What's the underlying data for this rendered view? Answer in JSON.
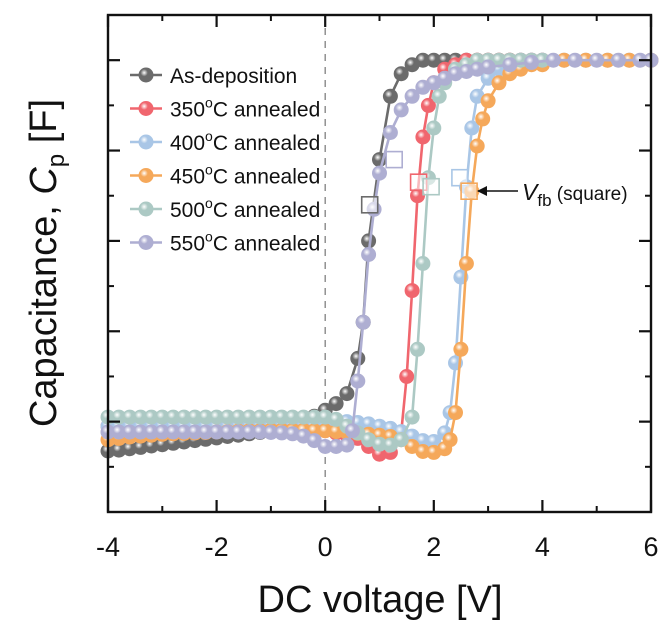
{
  "chart_data": {
    "type": "line",
    "title": "",
    "xlabel": "DC voltage [V]",
    "ylabel_main": "Capacitance, ",
    "ylabel_symbol": "C",
    "ylabel_subscript": "p",
    "ylabel_unit": " [F]",
    "xlim": [
      -4,
      6
    ],
    "ylim": [
      0,
      1.1
    ],
    "y_units": "normalized C/Cmax (no tick labels shown)",
    "x_ticks": [
      -4,
      -2,
      0,
      2,
      4,
      6
    ],
    "x_tick_labels": [
      "-4",
      "-2",
      "0",
      "2",
      "4",
      "6"
    ],
    "x_minor_ticks": [
      -3,
      -1,
      1,
      3,
      5
    ],
    "y_ticks": [
      0.2,
      0.4,
      0.6,
      0.8,
      1.0
    ],
    "y_minor_ticks": [
      0.1,
      0.3,
      0.5,
      0.7,
      0.9
    ],
    "y_tick_labels_shown": false,
    "grid": false,
    "reference_line": {
      "x": 0,
      "style": "dashed"
    },
    "legend": {
      "placement": "top-left"
    },
    "annotation": {
      "label_main": "V",
      "label_sub": "fb",
      "label_rest": " (square)",
      "points_to_series": "450°C annealed"
    },
    "series": [
      {
        "name": "As-deposition",
        "color": "#6b6b6b",
        "x": [
          -4.0,
          -3.8,
          -3.6,
          -3.4,
          -3.2,
          -3.0,
          -2.8,
          -2.6,
          -2.4,
          -2.2,
          -2.0,
          -1.8,
          -1.6,
          -1.4,
          -1.2,
          -1.0,
          -0.8,
          -0.6,
          -0.4,
          -0.2,
          0.0,
          0.2,
          0.4,
          0.6,
          0.7,
          0.8,
          1.0,
          1.2,
          1.4,
          1.6,
          1.8,
          2.0,
          2.2,
          2.4,
          2.6,
          2.8,
          3.0,
          3.2,
          3.4,
          3.6,
          3.8,
          4.0
        ],
        "y": [
          0.135,
          0.137,
          0.14,
          0.143,
          0.146,
          0.149,
          0.152,
          0.155,
          0.158,
          0.161,
          0.164,
          0.167,
          0.17,
          0.173,
          0.176,
          0.18,
          0.186,
          0.193,
          0.202,
          0.212,
          0.225,
          0.24,
          0.262,
          0.34,
          0.42,
          0.6,
          0.78,
          0.92,
          0.97,
          0.99,
          1.0,
          1.0,
          1.0,
          1.0,
          1.0,
          1.0,
          1.0,
          1.0,
          1.0,
          1.0,
          1.0,
          1.0
        ],
        "vfb": {
          "x": 0.82,
          "y": 0.68
        }
      },
      {
        "name": "350°C annealed",
        "color": "#f0666e",
        "x": [
          -4.0,
          -3.8,
          -3.6,
          -3.4,
          -3.2,
          -3.0,
          -2.8,
          -2.6,
          -2.4,
          -2.2,
          -2.0,
          -1.8,
          -1.6,
          -1.4,
          -1.2,
          -1.0,
          -0.8,
          -0.6,
          -0.4,
          -0.2,
          0.0,
          0.2,
          0.4,
          0.6,
          0.8,
          1.0,
          1.2,
          1.4,
          1.5,
          1.6,
          1.7,
          1.8,
          1.9,
          2.0,
          2.2,
          2.4,
          2.6,
          2.8,
          3.0,
          3.2,
          3.4,
          3.6,
          3.8,
          4.0
        ],
        "y": [
          0.19,
          0.19,
          0.19,
          0.19,
          0.19,
          0.19,
          0.19,
          0.19,
          0.19,
          0.19,
          0.19,
          0.19,
          0.19,
          0.19,
          0.19,
          0.19,
          0.19,
          0.19,
          0.19,
          0.185,
          0.18,
          0.175,
          0.17,
          0.163,
          0.145,
          0.128,
          0.132,
          0.175,
          0.3,
          0.49,
          0.7,
          0.83,
          0.9,
          0.95,
          0.98,
          0.99,
          1.0,
          1.0,
          1.0,
          1.0,
          1.0,
          1.0,
          1.0,
          1.0
        ],
        "vfb": {
          "x": 1.72,
          "y": 0.73
        }
      },
      {
        "name": "400°C annealed",
        "color": "#a9c6e6",
        "x": [
          -4.0,
          -3.8,
          -3.6,
          -3.4,
          -3.2,
          -3.0,
          -2.8,
          -2.6,
          -2.4,
          -2.2,
          -2.0,
          -1.8,
          -1.6,
          -1.4,
          -1.2,
          -1.0,
          -0.8,
          -0.6,
          -0.4,
          -0.2,
          0.0,
          0.2,
          0.4,
          0.6,
          0.8,
          1.0,
          1.2,
          1.4,
          1.6,
          1.8,
          2.0,
          2.2,
          2.3,
          2.4,
          2.5,
          2.6,
          2.7,
          2.8,
          3.0,
          3.2,
          3.4,
          3.6,
          3.8,
          4.0,
          4.4,
          4.8,
          5.2,
          5.6,
          6.0
        ],
        "y": [
          0.19,
          0.19,
          0.19,
          0.19,
          0.19,
          0.19,
          0.19,
          0.19,
          0.19,
          0.19,
          0.19,
          0.19,
          0.19,
          0.19,
          0.19,
          0.19,
          0.19,
          0.19,
          0.19,
          0.19,
          0.195,
          0.198,
          0.2,
          0.198,
          0.195,
          0.19,
          0.185,
          0.178,
          0.168,
          0.158,
          0.156,
          0.175,
          0.22,
          0.33,
          0.52,
          0.72,
          0.85,
          0.92,
          0.96,
          0.98,
          0.99,
          1.0,
          1.0,
          1.0,
          1.0,
          1.0,
          1.0,
          1.0,
          1.0
        ],
        "vfb": {
          "x": 2.48,
          "y": 0.74
        }
      },
      {
        "name": "450°C annealed",
        "color": "#f5a85a",
        "x": [
          -4.0,
          -3.8,
          -3.6,
          -3.4,
          -3.2,
          -3.0,
          -2.8,
          -2.6,
          -2.4,
          -2.2,
          -2.0,
          -1.8,
          -1.6,
          -1.4,
          -1.2,
          -1.0,
          -0.8,
          -0.6,
          -0.4,
          -0.2,
          0.0,
          0.2,
          0.4,
          0.6,
          0.8,
          1.0,
          1.2,
          1.4,
          1.6,
          1.8,
          2.0,
          2.2,
          2.3,
          2.4,
          2.5,
          2.6,
          2.7,
          2.8,
          2.9,
          3.0,
          3.2,
          3.4,
          3.6,
          3.8,
          4.0,
          4.4,
          4.8,
          5.2,
          5.6,
          6.0
        ],
        "y": [
          0.16,
          0.163,
          0.166,
          0.168,
          0.17,
          0.172,
          0.173,
          0.174,
          0.175,
          0.176,
          0.177,
          0.178,
          0.179,
          0.18,
          0.18,
          0.181,
          0.181,
          0.181,
          0.181,
          0.18,
          0.18,
          0.178,
          0.176,
          0.174,
          0.172,
          0.17,
          0.167,
          0.16,
          0.145,
          0.134,
          0.132,
          0.14,
          0.16,
          0.22,
          0.36,
          0.55,
          0.71,
          0.81,
          0.87,
          0.91,
          0.95,
          0.97,
          0.98,
          0.99,
          0.99,
          1.0,
          1.0,
          1.0,
          1.0,
          1.0
        ],
        "vfb": {
          "x": 2.65,
          "y": 0.71
        }
      },
      {
        "name": "500°C annealed",
        "color": "#acc9c4",
        "x": [
          -4.0,
          -3.8,
          -3.6,
          -3.4,
          -3.2,
          -3.0,
          -2.8,
          -2.6,
          -2.4,
          -2.2,
          -2.0,
          -1.8,
          -1.6,
          -1.4,
          -1.2,
          -1.0,
          -0.8,
          -0.6,
          -0.4,
          -0.2,
          0.0,
          0.2,
          0.4,
          0.6,
          0.8,
          1.0,
          1.2,
          1.4,
          1.6,
          1.7,
          1.8,
          1.9,
          2.0,
          2.1,
          2.2,
          2.4,
          2.6,
          2.8,
          3.0,
          3.2,
          3.4,
          3.6,
          3.8,
          4.0
        ],
        "y": [
          0.21,
          0.21,
          0.21,
          0.21,
          0.21,
          0.21,
          0.21,
          0.21,
          0.21,
          0.21,
          0.21,
          0.21,
          0.21,
          0.21,
          0.21,
          0.21,
          0.21,
          0.21,
          0.21,
          0.21,
          0.21,
          0.205,
          0.19,
          0.175,
          0.16,
          0.15,
          0.148,
          0.16,
          0.21,
          0.36,
          0.55,
          0.74,
          0.85,
          0.92,
          0.95,
          0.98,
          0.99,
          1.0,
          1.0,
          1.0,
          1.0,
          1.0,
          1.0,
          1.0
        ],
        "vfb": {
          "x": 1.95,
          "y": 0.72
        }
      },
      {
        "name": "550°C annealed",
        "color": "#aeaed2",
        "x": [
          -4.0,
          -3.8,
          -3.6,
          -3.4,
          -3.2,
          -3.0,
          -2.8,
          -2.6,
          -2.4,
          -2.2,
          -2.0,
          -1.8,
          -1.6,
          -1.4,
          -1.2,
          -1.0,
          -0.8,
          -0.6,
          -0.4,
          -0.2,
          0.0,
          0.2,
          0.4,
          0.5,
          0.6,
          0.7,
          0.8,
          0.9,
          1.0,
          1.2,
          1.4,
          1.6,
          1.8,
          2.0,
          2.2,
          2.4,
          2.6,
          2.8,
          3.0,
          3.4,
          3.8,
          4.2,
          4.6,
          5.0,
          5.4,
          5.8,
          6.0
        ],
        "y": [
          0.177,
          0.177,
          0.177,
          0.177,
          0.177,
          0.177,
          0.177,
          0.177,
          0.177,
          0.177,
          0.177,
          0.177,
          0.177,
          0.177,
          0.177,
          0.176,
          0.175,
          0.173,
          0.168,
          0.158,
          0.145,
          0.145,
          0.148,
          0.18,
          0.29,
          0.42,
          0.57,
          0.67,
          0.75,
          0.84,
          0.89,
          0.92,
          0.94,
          0.95,
          0.96,
          0.97,
          0.975,
          0.98,
          0.985,
          0.99,
          0.995,
          1.0,
          1.0,
          1.0,
          1.0,
          1.0,
          1.0
        ],
        "vfb": {
          "x": 1.27,
          "y": 0.78
        }
      }
    ]
  }
}
